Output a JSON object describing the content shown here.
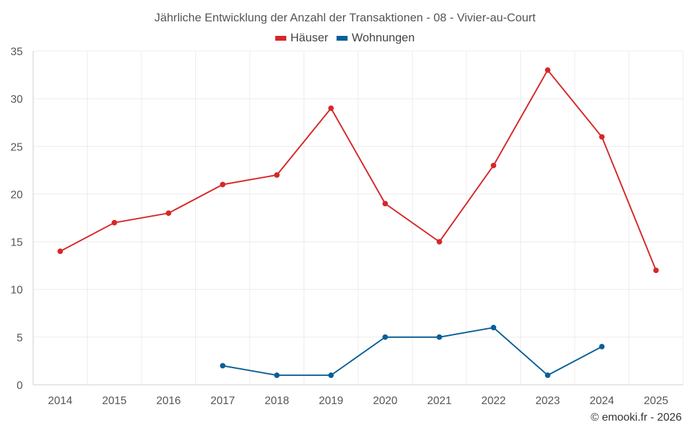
{
  "chart_data": {
    "type": "line",
    "title": "Jährliche Entwicklung der Anzahl der Transaktionen - 08 - Vivier-au-Court",
    "categories": [
      "2014",
      "2015",
      "2016",
      "2017",
      "2018",
      "2019",
      "2020",
      "2021",
      "2022",
      "2023",
      "2024",
      "2025"
    ],
    "ylim": [
      0,
      35
    ],
    "yticks": [
      0,
      5,
      10,
      15,
      20,
      25,
      30,
      35
    ],
    "grid": true,
    "legend_position": "top-center",
    "series": [
      {
        "name": "Häuser",
        "color": "#d62728",
        "values": [
          14,
          17,
          18,
          21,
          22,
          29,
          19,
          15,
          23,
          33,
          26,
          12
        ]
      },
      {
        "name": "Wohnungen",
        "color": "#0b5f96",
        "values": [
          null,
          null,
          null,
          2,
          1,
          1,
          5,
          5,
          6,
          1,
          4,
          null
        ]
      }
    ]
  },
  "credit": "© emooki.fr - 2026"
}
